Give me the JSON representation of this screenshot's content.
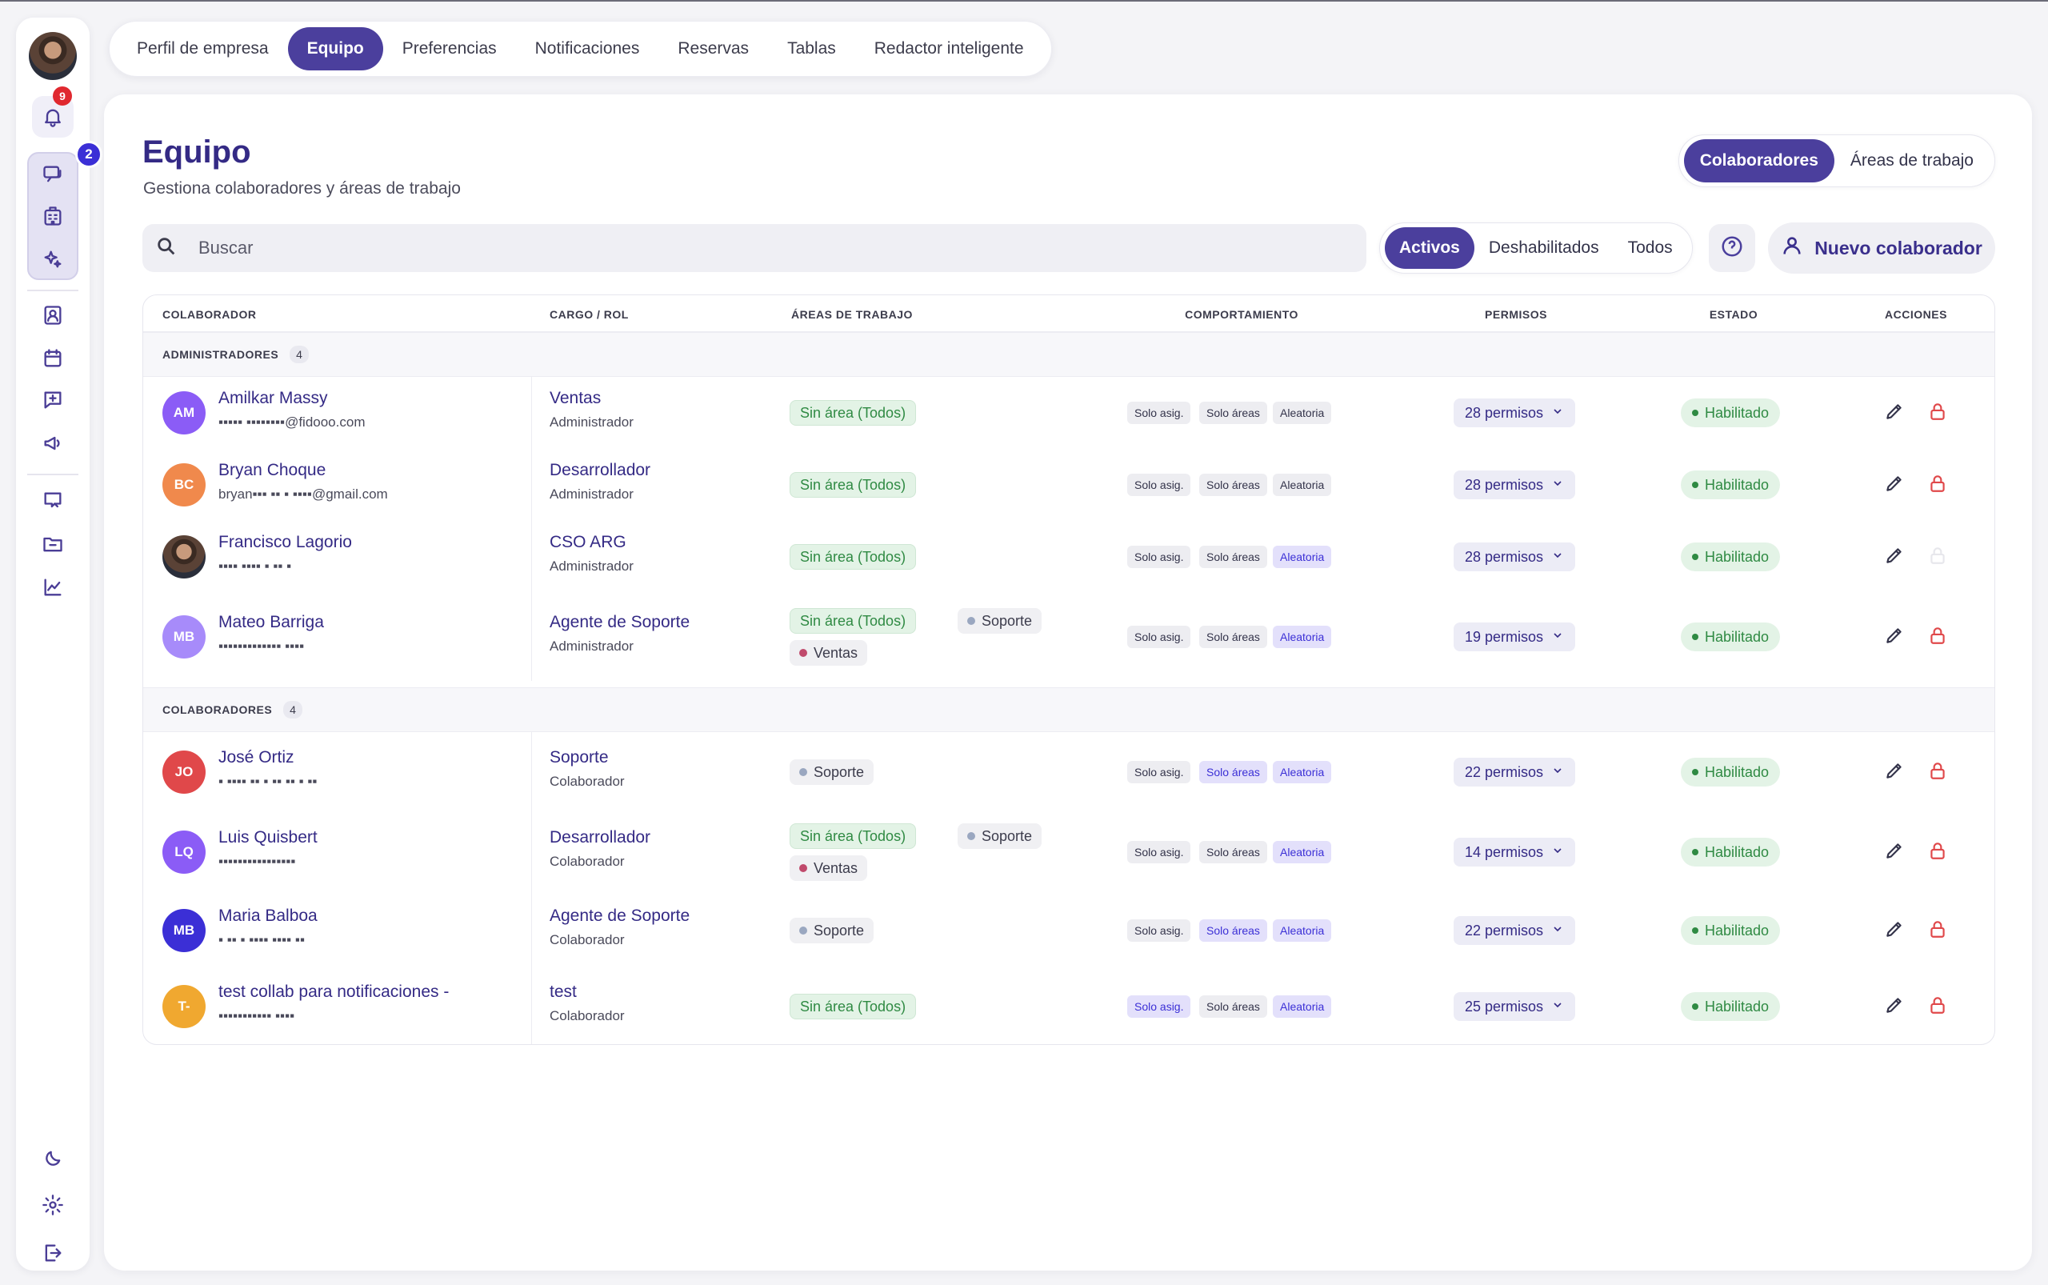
{
  "rail": {
    "notifications_count": "9",
    "messages_count": "2",
    "icons": [
      "bell-icon",
      "chat-icon",
      "building-icon",
      "sparkle-icon",
      "contact-icon",
      "calendar-icon",
      "message-plus-icon",
      "megaphone-icon",
      "inbox-chat-icon",
      "folder-chat-icon",
      "chart-line-icon",
      "moon-icon",
      "gear-icon",
      "logout-icon"
    ]
  },
  "tabs": [
    "Perfil de empresa",
    "Equipo",
    "Preferencias",
    "Notificaciones",
    "Reservas",
    "Tablas",
    "Redactor inteligente"
  ],
  "active_tab": "Equipo",
  "header": {
    "title": "Equipo",
    "subtitle": "Gestiona colaboradores y áreas de trabajo"
  },
  "view_switch": {
    "options": [
      "Colaboradores",
      "Áreas de trabajo"
    ],
    "active": "Colaboradores"
  },
  "search": {
    "placeholder": "Buscar",
    "value": ""
  },
  "filter": {
    "options": [
      "Activos",
      "Deshabilitados",
      "Todos"
    ],
    "active": "Activos"
  },
  "new_button": "Nuevo colaborador",
  "table": {
    "columns": [
      "COLABORADOR",
      "CARGO / ROL",
      "ÁREAS DE TRABAJO",
      "COMPORTAMIENTO",
      "PERMISOS",
      "ESTADO",
      "ACCIONES"
    ],
    "groups": [
      {
        "name": "ADMINISTRADORES",
        "count": "4",
        "rows": [
          {
            "initials": "AM",
            "color": "#8b5cf6",
            "name": "Amilkar Massy",
            "email": "▪▪▪▪▪ ▪▪▪▪▪▪▪▪@fidooo.com",
            "role": "Ventas",
            "sub": "Administrador",
            "areas": [
              {
                "label": "Sin área (Todos)",
                "kind": "green"
              }
            ],
            "behavior": [
              false,
              false,
              false
            ],
            "permissions": "28 permisos",
            "status": "Habilitado",
            "lock_enabled": true
          },
          {
            "initials": "BC",
            "color": "#f0894c",
            "name": "Bryan Choque",
            "email": "bryan▪▪▪ ▪▪ ▪ ▪▪▪▪@gmail.com",
            "role": "Desarrollador",
            "sub": "Administrador",
            "areas": [
              {
                "label": "Sin área (Todos)",
                "kind": "green"
              }
            ],
            "behavior": [
              false,
              false,
              false
            ],
            "permissions": "28 permisos",
            "status": "Habilitado",
            "lock_enabled": true
          },
          {
            "initials": "",
            "color": "photo",
            "name": "Francisco Lagorio",
            "email": "▪▪▪▪ ▪▪▪▪ ▪ ▪▪ ▪",
            "role": "CSO ARG",
            "sub": "Administrador",
            "areas": [
              {
                "label": "Sin área (Todos)",
                "kind": "green"
              }
            ],
            "behavior": [
              false,
              false,
              true
            ],
            "permissions": "28 permisos",
            "status": "Habilitado",
            "lock_enabled": false
          },
          {
            "initials": "MB",
            "color": "#a78bfa",
            "name": "Mateo Barriga",
            "email": "▪▪▪▪▪▪▪▪▪▪▪▪▪ ▪▪▪▪",
            "role": "Agente de Soporte",
            "sub": "Administrador",
            "areas": [
              {
                "label": "Sin área (Todos)",
                "kind": "green"
              },
              {
                "label": "Soporte",
                "kind": "gray",
                "dot": "#9aa7c0"
              },
              {
                "label": "Ventas",
                "kind": "gray",
                "dot": "#c04a6c"
              }
            ],
            "behavior": [
              false,
              false,
              true
            ],
            "permissions": "19 permisos",
            "status": "Habilitado",
            "lock_enabled": true
          }
        ]
      },
      {
        "name": "COLABORADORES",
        "count": "4",
        "rows": [
          {
            "initials": "JO",
            "color": "#e0484a",
            "name": "José Ortiz",
            "email": "▪ ▪▪▪▪ ▪▪ ▪ ▪▪ ▪▪ ▪ ▪▪",
            "role": "Soporte",
            "sub": "Colaborador",
            "areas": [
              {
                "label": "Soporte",
                "kind": "gray",
                "dot": "#9aa7c0"
              }
            ],
            "behavior": [
              false,
              true,
              true
            ],
            "permissions": "22 permisos",
            "status": "Habilitado",
            "lock_enabled": true
          },
          {
            "initials": "LQ",
            "color": "#8b5cf6",
            "name": "Luis Quisbert",
            "email": "▪▪▪▪▪▪▪▪▪▪▪▪▪▪▪▪",
            "role": "Desarrollador",
            "sub": "Colaborador",
            "areas": [
              {
                "label": "Sin área (Todos)",
                "kind": "green"
              },
              {
                "label": "Soporte",
                "kind": "gray",
                "dot": "#9aa7c0"
              },
              {
                "label": "Ventas",
                "kind": "gray",
                "dot": "#c04a6c"
              }
            ],
            "behavior": [
              false,
              false,
              true
            ],
            "permissions": "14 permisos",
            "status": "Habilitado",
            "lock_enabled": true
          },
          {
            "initials": "MB",
            "color": "#3b2fd6",
            "name": "Maria Balboa",
            "email": "▪ ▪▪ ▪ ▪▪▪▪ ▪▪▪▪ ▪▪",
            "role": "Agente de Soporte",
            "sub": "Colaborador",
            "areas": [
              {
                "label": "Soporte",
                "kind": "gray",
                "dot": "#9aa7c0"
              }
            ],
            "behavior": [
              false,
              true,
              true
            ],
            "permissions": "22 permisos",
            "status": "Habilitado",
            "lock_enabled": true
          },
          {
            "initials": "T-",
            "color": "#f0a830",
            "name": "test collab para notificaciones -",
            "email": "▪▪▪▪▪▪▪▪▪▪▪ ▪▪▪▪",
            "role": "test",
            "sub": "Colaborador",
            "areas": [
              {
                "label": "Sin área (Todos)",
                "kind": "green"
              }
            ],
            "behavior": [
              true,
              false,
              true
            ],
            "permissions": "25 permisos",
            "status": "Habilitado",
            "lock_enabled": true
          }
        ]
      }
    ],
    "behavior_labels": [
      "Solo asig.",
      "Solo áreas",
      "Aleatoria"
    ]
  }
}
